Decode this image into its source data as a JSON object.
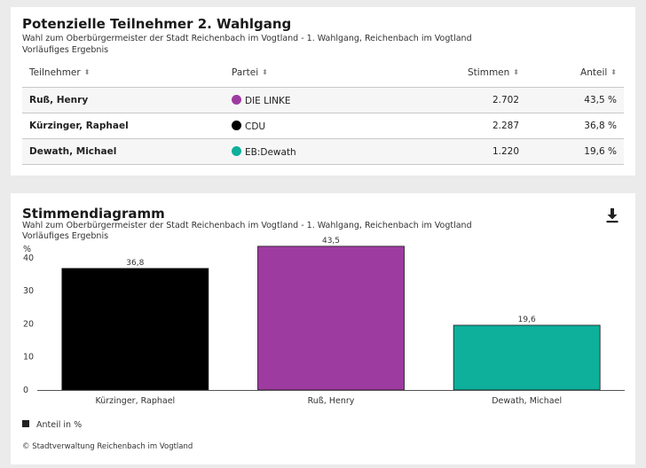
{
  "table_card": {
    "title": "Potenzielle Teilnehmer 2. Wahlgang",
    "subtitle": "Wahl zum Oberbürgermeister der Stadt Reichenbach im Vogtland - 1. Wahlgang, Reichenbach im Vogtland",
    "subtitle2": "Vorläufiges Ergebnis",
    "columns": [
      "Teilnehmer",
      "Partei",
      "Stimmen",
      "Anteil"
    ],
    "rows": [
      {
        "name": "Ruß, Henry",
        "party": "DIE LINKE",
        "color": "#9e3ba0",
        "votes": "2.702",
        "share": "43,5 %"
      },
      {
        "name": "Kürzinger, Raphael",
        "party": "CDU",
        "color": "#000000",
        "votes": "2.287",
        "share": "36,8 %"
      },
      {
        "name": "Dewath, Michael",
        "party": "EB:Dewath",
        "color": "#0eaf9b",
        "votes": "1.220",
        "share": "19,6 %"
      }
    ]
  },
  "chart_card": {
    "title": "Stimmendiagramm",
    "subtitle": "Wahl zum Oberbürgermeister der Stadt Reichenbach im Vogtland - 1. Wahlgang, Reichenbach im Vogtland",
    "subtitle2": "Vorläufiges Ergebnis",
    "download_icon": "download-icon",
    "legend_label": "Anteil in %",
    "credit": "© Stadtverwaltung Reichenbach im Vogtland"
  },
  "chart_data": {
    "type": "bar",
    "categories": [
      "Kürzinger, Raphael",
      "Ruß, Henry",
      "Dewath, Michael"
    ],
    "values": [
      36.8,
      43.5,
      19.6
    ],
    "value_labels": [
      "36,8",
      "43,5",
      "19,6"
    ],
    "colors": [
      "#000000",
      "#9e3ba0",
      "#0eaf9b"
    ],
    "ylabel": "%",
    "yticks": [
      0,
      10,
      20,
      30,
      40
    ],
    "ylim": [
      0,
      44
    ],
    "grid": false,
    "legend": "bottom-left"
  }
}
